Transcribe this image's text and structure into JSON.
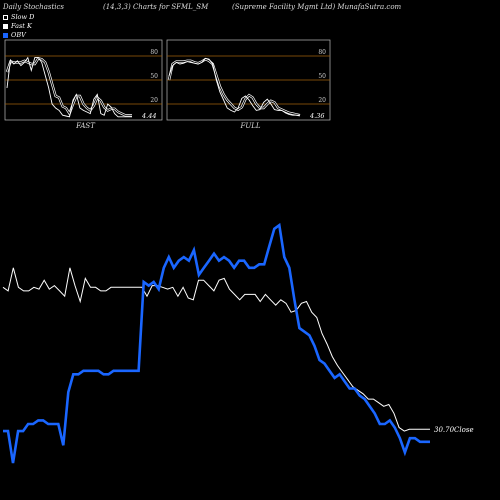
{
  "header": {
    "left": "Daily Stochastics",
    "center": "(14,3,3) Charts for SFML_SM",
    "right": "(Supreme  Facility Mgmt Ltd) MunafaSutra.com"
  },
  "legend": [
    {
      "label": "Slow  D",
      "color": "#000000",
      "border": "#ffffff"
    },
    {
      "label": "Fast K",
      "color": "#ffffff",
      "border": "#ffffff"
    },
    {
      "label": "OBV",
      "color": "#1a66ff",
      "border": "#1a66ff"
    }
  ],
  "chart_data": [
    {
      "type": "line",
      "title": "FAST",
      "ylim": [
        0,
        100
      ],
      "yticks": [
        "80",
        "50",
        "20"
      ],
      "last_value_label": "4.44",
      "series": [
        {
          "values": [
            60,
            73,
            72,
            72,
            72,
            74,
            72,
            70,
            70,
            77,
            76,
            72,
            60,
            45,
            30,
            28,
            17,
            15,
            8,
            20,
            30,
            30,
            20,
            15,
            12,
            18,
            28,
            24,
            16,
            12,
            14,
            14,
            10,
            8,
            6,
            6,
            6
          ]
        },
        {
          "values": [
            40,
            75,
            70,
            74,
            68,
            72,
            78,
            62,
            78,
            78,
            72,
            56,
            40,
            20,
            15,
            12,
            6,
            5,
            4,
            25,
            32,
            15,
            12,
            10,
            8,
            26,
            32,
            8,
            6,
            20,
            16,
            8,
            4,
            4,
            4,
            4,
            4
          ]
        }
      ]
    },
    {
      "type": "line",
      "title": "FULL",
      "ylim": [
        0,
        100
      ],
      "yticks": [
        "80",
        "50",
        "20"
      ],
      "last_value_label": "4.36",
      "series": [
        {
          "values": [
            50,
            70,
            73,
            73,
            73,
            74,
            74,
            72,
            71,
            73,
            76,
            74,
            70,
            56,
            42,
            32,
            25,
            20,
            15,
            13,
            16,
            26,
            31,
            28,
            20,
            15,
            15,
            20,
            24,
            22,
            15,
            13,
            11,
            9,
            8,
            7,
            6
          ]
        },
        {
          "values": [
            55,
            68,
            72,
            70,
            71,
            73,
            72,
            71,
            70,
            72,
            77,
            76,
            70,
            50,
            35,
            25,
            15,
            12,
            10,
            15,
            27,
            30,
            25,
            18,
            12,
            13,
            22,
            26,
            20,
            13,
            12,
            12,
            9,
            7,
            6,
            6,
            6
          ]
        }
      ]
    },
    {
      "type": "line",
      "last_value_label": "30.70Close",
      "series": [
        {
          "values": [
            58.5,
            57.5,
            64,
            58.5,
            57.5,
            57.5,
            58.5,
            58,
            60.5,
            58,
            59,
            57.5,
            56,
            64,
            59,
            54.5,
            61,
            58.5,
            58.5,
            57.5,
            57.5,
            58.5,
            58.5,
            58.5,
            58.5,
            58.5,
            58.5,
            58.5,
            56,
            59,
            59,
            58.5,
            58,
            58.5,
            56,
            58.5,
            55.5,
            55,
            60.5,
            60.5,
            59,
            57.5,
            60.5,
            61,
            58,
            56.5,
            55,
            56.5,
            56.5,
            56.5,
            54.5,
            56.5,
            55,
            53.5,
            55,
            54,
            51.5,
            52,
            54,
            54.5,
            51.5,
            50,
            45.5,
            42.5,
            39,
            36.5,
            34.5,
            32.5,
            30.5,
            29.5,
            28.5,
            27,
            27,
            26,
            25,
            25.5,
            23,
            19,
            18,
            18.5,
            18.5,
            18.5,
            18.5,
            18.5
          ]
        },
        {
          "values": [
            18,
            18,
            9,
            18,
            18,
            20,
            20,
            21,
            21,
            20,
            20,
            20,
            14,
            29,
            34,
            34,
            35,
            35,
            35,
            35,
            34,
            34,
            35,
            35,
            35,
            35,
            35,
            35,
            60,
            59,
            60,
            58,
            64,
            67,
            64,
            66,
            67,
            66,
            69,
            62,
            64,
            66,
            68,
            66,
            67,
            66,
            64,
            66,
            66,
            64,
            64,
            65,
            65,
            70,
            75,
            76,
            67,
            64,
            55,
            47,
            46,
            45,
            42,
            38,
            37,
            35,
            33,
            34,
            32,
            30,
            30,
            28,
            27,
            25,
            23,
            20,
            20,
            21,
            19,
            16,
            12,
            16,
            16,
            15,
            15,
            15
          ]
        }
      ]
    }
  ]
}
